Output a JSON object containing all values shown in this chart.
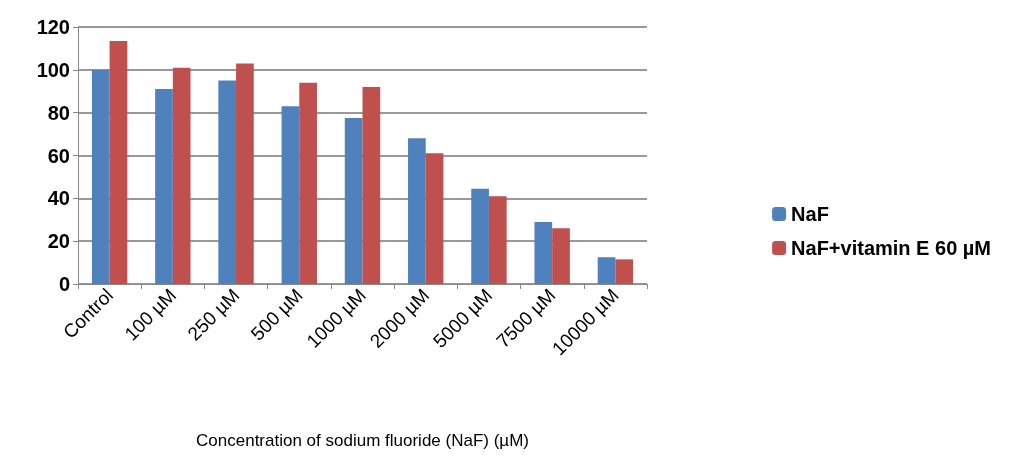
{
  "chart_data": {
    "type": "bar",
    "xlabel": "Concentration of sodium fluoride (NaF) (µM)",
    "categories": [
      "Control",
      "100 µM",
      "250 µM",
      "500 µM",
      "1000 µM",
      "2000 µM",
      "5000 µM",
      "7500 µM",
      "10000 µM"
    ],
    "series": [
      {
        "name": "NaF",
        "color": "#4f81bd",
        "values": [
          100,
          91,
          95,
          83,
          77.5,
          68,
          44.5,
          29,
          12.5
        ]
      },
      {
        "name": "NaF+vitamin E 60 µM",
        "color": "#c0504d",
        "values": [
          113.5,
          101,
          103,
          94,
          92,
          61,
          41,
          26,
          11.5
        ]
      }
    ],
    "ylim": [
      0,
      120
    ],
    "yticks": [
      0,
      20,
      40,
      60,
      80,
      100,
      120
    ],
    "grid": "y",
    "legend": "right"
  }
}
